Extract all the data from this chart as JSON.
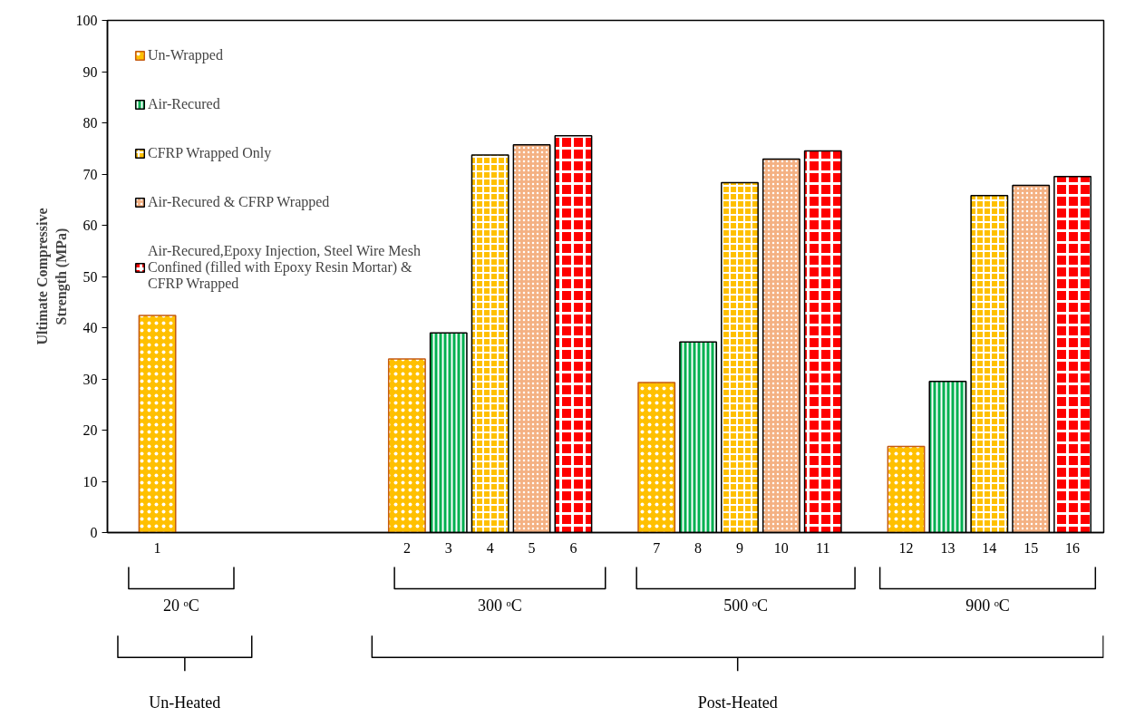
{
  "chart_data": {
    "type": "bar",
    "ylabel": "Ultimate Compressive Strength (MPa)",
    "categories": [
      "1",
      null,
      null,
      null,
      null,
      null,
      "2",
      "3",
      "4",
      "5",
      "6",
      null,
      "7",
      "8",
      "9",
      "10",
      "11",
      null,
      "12",
      "13",
      "14",
      "15",
      "16"
    ],
    "series": [
      {
        "name": "Un-Wrapped",
        "color": "#ffc000",
        "values": [
          42.4,
          null,
          null,
          null,
          null,
          null,
          33.9,
          null,
          null,
          null,
          null,
          null,
          29.3,
          null,
          null,
          null,
          null,
          null,
          16.8,
          null,
          null,
          null,
          null
        ]
      },
      {
        "name": "Air-Recured",
        "color": "#00b050",
        "values": [
          null,
          null,
          null,
          null,
          null,
          null,
          null,
          39.0,
          null,
          null,
          null,
          null,
          null,
          37.2,
          null,
          null,
          null,
          null,
          null,
          29.5,
          null,
          null,
          null
        ]
      },
      {
        "name": "CFRP Wrapped Only",
        "color": "#ffc000",
        "values": [
          null,
          null,
          null,
          null,
          null,
          null,
          null,
          null,
          73.7,
          null,
          null,
          null,
          null,
          null,
          68.3,
          null,
          null,
          null,
          null,
          null,
          65.8,
          null,
          null
        ]
      },
      {
        "name": "Air-Recured & CFRP Wrapped",
        "color": "#f4b183",
        "values": [
          null,
          null,
          null,
          null,
          null,
          null,
          null,
          null,
          null,
          75.7,
          null,
          null,
          null,
          null,
          null,
          72.9,
          null,
          null,
          null,
          null,
          null,
          67.8,
          null
        ]
      },
      {
        "name": "Air-Recured,Epoxy Injection, Steel Wire Mesh Confined (filled with Epoxy Resin Mortar) & CFRP Wrapped",
        "color": "#ff0000",
        "values": [
          null,
          null,
          null,
          null,
          null,
          null,
          null,
          null,
          null,
          null,
          77.5,
          null,
          null,
          null,
          null,
          null,
          74.5,
          null,
          null,
          null,
          null,
          null,
          69.5
        ]
      }
    ],
    "ylim": [
      0,
      100
    ],
    "yticks": [
      0,
      10,
      20,
      30,
      40,
      50,
      60,
      70,
      80,
      90,
      100
    ],
    "grid": false,
    "legend": "top left",
    "annotations": [
      "20 ᵒC",
      "300 ᵒC",
      "500 ᵒC",
      "900 ᵒC",
      "Un-Heated",
      "Post-Heated"
    ]
  }
}
